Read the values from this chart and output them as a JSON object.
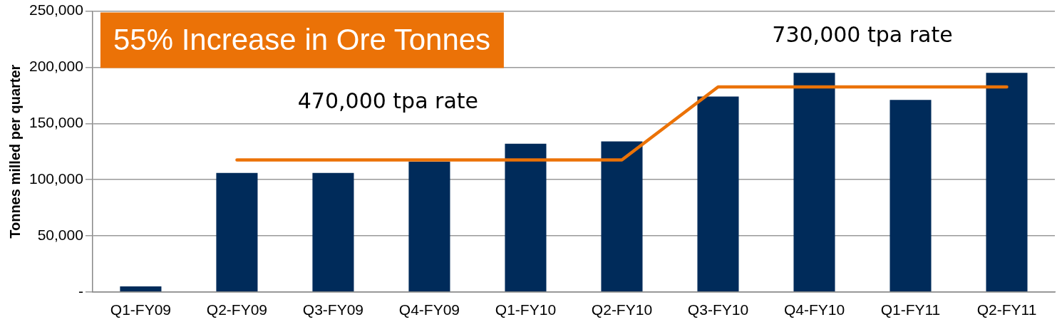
{
  "chart_data": {
    "type": "bar",
    "ylabel": "Tonnes milled per quarter",
    "categories": [
      "Q1-FY09",
      "Q2-FY09",
      "Q3-FY09",
      "Q4-FY09",
      "Q1-FY10",
      "Q2-FY10",
      "Q3-FY10",
      "Q4-FY10",
      "Q1-FY11",
      "Q2-FY11"
    ],
    "series": [
      {
        "color": "#002b5a",
        "values": [
          5000,
          106000,
          106000,
          116000,
          132000,
          134000,
          174000,
          195000,
          171000,
          195000
        ]
      },
      {
        "type": "line",
        "color": "#eb7207",
        "values": [
          null,
          117500,
          117500,
          117500,
          117500,
          117500,
          182500,
          182500,
          182500,
          182500
        ]
      }
    ],
    "ylim": [
      0,
      250000
    ],
    "yticks": [
      {
        "value": 0,
        "label": "-"
      },
      {
        "value": 50000,
        "label": "50,000"
      },
      {
        "value": 100000,
        "label": "100,000"
      },
      {
        "value": 150000,
        "label": "150,000"
      },
      {
        "value": 200000,
        "label": "200,000"
      },
      {
        "value": 250000,
        "label": "250,000"
      }
    ],
    "grid": "y",
    "legend": false,
    "marker": "none",
    "line_style": "solid",
    "annotations": [
      "55% Increase in Ore Tonnes",
      "470,000 tpa rate",
      "730,000 tpa rate"
    ]
  }
}
